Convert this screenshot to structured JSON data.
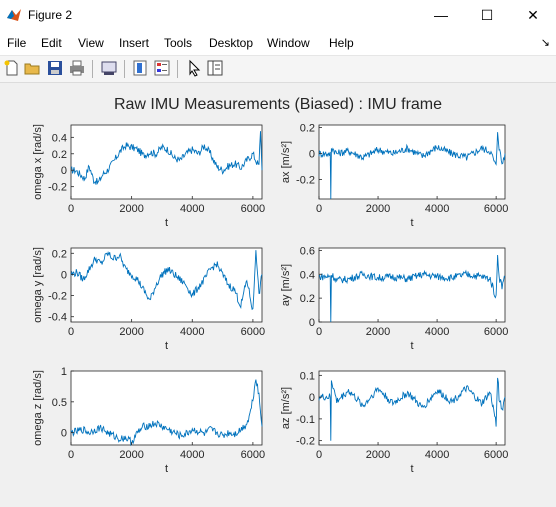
{
  "window": {
    "title": "Figure 2",
    "minimize_glyph": "—",
    "maximize_glyph": "☐",
    "close_glyph": "✕"
  },
  "menu": [
    "File",
    "Edit",
    "View",
    "Insert",
    "Tools",
    "Desktop",
    "Window",
    "Help"
  ],
  "menu_corner_glyph": "↘",
  "toolbar": [
    "new-figure-icon",
    "open-file-icon",
    "save-icon",
    "print-icon",
    "link-plot-icon",
    "colorbar-icon",
    "legend-icon",
    "pointer-icon",
    "property-editor-icon"
  ],
  "colors": {
    "line": "#0072bd",
    "axes_bg": "#ffffff",
    "figure_bg": "#f0f0f0"
  },
  "figure_title": "Raw IMU Measurements (Biased) : IMU frame",
  "chart_data": [
    {
      "type": "line",
      "xlabel": "t",
      "ylabel": "omega x [rad/s]",
      "xlim": [
        0,
        6300
      ],
      "ylim": [
        -0.35,
        0.55
      ],
      "xticks": [
        0,
        2000,
        4000,
        6000
      ],
      "yticks": [
        -0.2,
        0,
        0.2,
        0.4
      ],
      "xticklabels": [
        "0",
        "2000",
        "4000",
        "6000"
      ],
      "yticklabels": [
        "-0.2",
        "0",
        "0.2",
        "0.4"
      ],
      "x": [
        0,
        150,
        300,
        450,
        600,
        750,
        900,
        1050,
        1200,
        1400,
        1600,
        1800,
        2000,
        2200,
        2400,
        2600,
        2800,
        3000,
        3200,
        3400,
        3600,
        3800,
        4000,
        4200,
        4400,
        4600,
        4800,
        5000,
        5200,
        5400,
        5600,
        5800,
        6000,
        6100,
        6200,
        6250,
        6300
      ],
      "y": [
        0.0,
        0.0,
        -0.05,
        -0.1,
        0.05,
        -0.12,
        -0.15,
        -0.05,
        0.0,
        0.1,
        0.22,
        0.3,
        0.28,
        0.25,
        0.18,
        0.22,
        0.2,
        0.28,
        0.25,
        0.15,
        0.12,
        0.2,
        0.25,
        0.2,
        0.3,
        0.2,
        0.05,
        0.0,
        0.05,
        0.08,
        0.03,
        0.12,
        0.2,
        0.12,
        0.05,
        0.5,
        0.0
      ]
    },
    {
      "type": "line",
      "xlabel": "t",
      "ylabel": "ax [m/s²]",
      "xlim": [
        0,
        6300
      ],
      "ylim": [
        -0.35,
        0.22
      ],
      "xticks": [
        0,
        2000,
        4000,
        6000
      ],
      "yticks": [
        -0.2,
        0,
        0.2
      ],
      "xticklabels": [
        "0",
        "2000",
        "4000",
        "6000"
      ],
      "yticklabels": [
        "-0.2",
        "0",
        "0.2"
      ],
      "x": [
        0,
        200,
        380,
        400,
        420,
        600,
        1000,
        1500,
        2000,
        2500,
        3000,
        3500,
        4000,
        4500,
        5000,
        5500,
        5800,
        6000,
        6050,
        6100,
        6200,
        6300
      ],
      "y": [
        0.0,
        0.0,
        0.0,
        -0.35,
        0.05,
        0.0,
        0.02,
        -0.03,
        0.03,
        0.0,
        0.04,
        -0.02,
        0.05,
        0.0,
        -0.03,
        0.04,
        0.02,
        -0.1,
        0.18,
        0.05,
        -0.08,
        0.0
      ]
    },
    {
      "type": "line",
      "xlabel": "t",
      "ylabel": "omega y [rad/s]",
      "xlim": [
        0,
        6300
      ],
      "ylim": [
        -0.45,
        0.25
      ],
      "xticks": [
        0,
        2000,
        4000,
        6000
      ],
      "yticks": [
        -0.4,
        -0.2,
        0,
        0.2
      ],
      "xticklabels": [
        "0",
        "2000",
        "4000",
        "6000"
      ],
      "yticklabels": [
        "-0.4",
        "-0.2",
        "0",
        "0.2"
      ],
      "x": [
        0,
        200,
        400,
        600,
        800,
        1000,
        1200,
        1400,
        1600,
        1800,
        2000,
        2200,
        2400,
        2600,
        2800,
        3000,
        3200,
        3400,
        3600,
        3800,
        4000,
        4200,
        4400,
        4600,
        4800,
        5000,
        5200,
        5400,
        5600,
        5800,
        6000,
        6100,
        6200,
        6300
      ],
      "y": [
        0.0,
        0.02,
        -0.05,
        0.05,
        0.15,
        0.1,
        0.2,
        0.15,
        0.18,
        0.05,
        0.0,
        -0.05,
        -0.15,
        -0.25,
        -0.1,
        0.0,
        0.05,
        0.0,
        -0.05,
        -0.1,
        -0.2,
        -0.12,
        -0.05,
        0.05,
        0.1,
        0.0,
        -0.1,
        -0.15,
        -0.3,
        -0.05,
        -0.35,
        0.25,
        -0.2,
        0.0
      ]
    },
    {
      "type": "line",
      "xlabel": "t",
      "ylabel": "ay [m/s²]",
      "xlim": [
        0,
        6300
      ],
      "ylim": [
        0.0,
        0.62
      ],
      "xticks": [
        0,
        2000,
        4000,
        6000
      ],
      "yticks": [
        0,
        0.2,
        0.4,
        0.6
      ],
      "xticklabels": [
        "0",
        "2000",
        "4000",
        "6000"
      ],
      "yticklabels": [
        "0",
        "0.2",
        "0.4",
        "0.6"
      ],
      "x": [
        0,
        200,
        380,
        400,
        420,
        600,
        1000,
        1500,
        2000,
        2500,
        3000,
        3500,
        4000,
        4500,
        5000,
        5500,
        5800,
        6000,
        6050,
        6100,
        6200,
        6300
      ],
      "y": [
        0.38,
        0.38,
        0.38,
        0.0,
        0.4,
        0.35,
        0.36,
        0.4,
        0.37,
        0.38,
        0.36,
        0.4,
        0.38,
        0.37,
        0.4,
        0.38,
        0.36,
        0.2,
        0.58,
        0.38,
        0.3,
        0.38
      ]
    },
    {
      "type": "line",
      "xlabel": "t",
      "ylabel": "omega z [rad/s]",
      "xlim": [
        0,
        6300
      ],
      "ylim": [
        -0.2,
        1.0
      ],
      "xticks": [
        0,
        2000,
        4000,
        6000
      ],
      "yticks": [
        0,
        0.5,
        1
      ],
      "xticklabels": [
        "0",
        "2000",
        "4000",
        "6000"
      ],
      "yticklabels": [
        "0",
        "0.5",
        "1"
      ],
      "x": [
        0,
        200,
        400,
        600,
        800,
        1000,
        1200,
        1400,
        1600,
        1800,
        2000,
        2200,
        2400,
        2600,
        2800,
        3000,
        3200,
        3400,
        3600,
        3800,
        4000,
        4200,
        4400,
        4600,
        4800,
        5000,
        5200,
        5400,
        5600,
        5800,
        5900,
        6000,
        6100,
        6200,
        6300
      ],
      "y": [
        0.0,
        0.02,
        0.05,
        0.0,
        0.05,
        0.08,
        0.0,
        -0.05,
        -0.1,
        -0.08,
        -0.15,
        0.0,
        0.1,
        0.12,
        0.15,
        0.1,
        0.05,
        0.0,
        -0.05,
        -0.02,
        0.05,
        0.02,
        -0.02,
        0.05,
        0.0,
        -0.05,
        0.0,
        -0.02,
        0.05,
        0.15,
        0.3,
        0.55,
        0.9,
        0.6,
        0.1
      ]
    },
    {
      "type": "line",
      "xlabel": "t",
      "ylabel": "az [m/s²]",
      "xlim": [
        0,
        6300
      ],
      "ylim": [
        -0.22,
        0.12
      ],
      "xticks": [
        0,
        2000,
        4000,
        6000
      ],
      "yticks": [
        -0.2,
        -0.1,
        0,
        0.1
      ],
      "xticklabels": [
        "0",
        "2000",
        "4000",
        "6000"
      ],
      "yticklabels": [
        "-0.2",
        "-0.1",
        "0",
        "0.1"
      ],
      "x": [
        0,
        200,
        380,
        400,
        420,
        600,
        1000,
        1500,
        2000,
        2500,
        3000,
        3500,
        4000,
        4500,
        5000,
        5500,
        5800,
        6000,
        6050,
        6100,
        6200,
        6300
      ],
      "y": [
        0.0,
        0.0,
        0.0,
        -0.2,
        0.08,
        -0.02,
        0.03,
        -0.04,
        0.04,
        -0.03,
        0.02,
        -0.05,
        0.03,
        -0.02,
        0.04,
        -0.03,
        0.02,
        -0.12,
        0.1,
        0.0,
        -0.06,
        0.0
      ]
    }
  ]
}
